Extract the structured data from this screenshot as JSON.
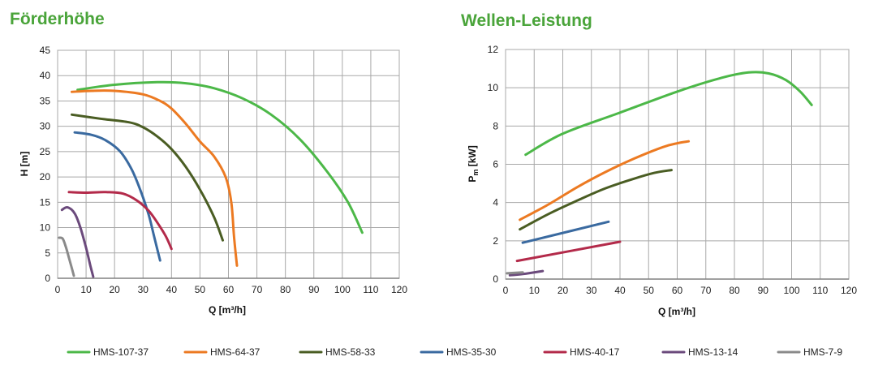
{
  "chart_data": [
    {
      "type": "line",
      "title": "Förderhöhe",
      "title_color": "#4aa43a",
      "xlabel": "Q [m³/h]",
      "ylabel": "H [m]",
      "xlim": [
        0,
        120
      ],
      "ylim": [
        0,
        45
      ],
      "xticks": [
        0,
        10,
        20,
        30,
        40,
        50,
        60,
        70,
        80,
        90,
        100,
        110,
        120
      ],
      "yticks": [
        0,
        5,
        10,
        15,
        20,
        25,
        30,
        35,
        40,
        45
      ],
      "grid": true,
      "series": [
        {
          "name": "HMS-107-37",
          "color": "#4cb848",
          "x": [
            7,
            20,
            35,
            45,
            55,
            65,
            75,
            85,
            95,
            102,
            107
          ],
          "y": [
            37.2,
            38.2,
            38.7,
            38.5,
            37.5,
            35.5,
            32.3,
            27.5,
            20.8,
            15.0,
            9.0
          ]
        },
        {
          "name": "HMS-64-37",
          "color": "#ec7a22",
          "x": [
            5,
            12,
            20,
            30,
            36,
            40,
            45,
            50,
            55,
            59,
            61,
            62,
            63
          ],
          "y": [
            36.8,
            37.0,
            37.0,
            36.3,
            35.0,
            33.5,
            30.5,
            27.0,
            24.0,
            20.0,
            15.0,
            8.0,
            2.5
          ]
        },
        {
          "name": "HMS-58-33",
          "color": "#4a5d23",
          "x": [
            5,
            15,
            25,
            30,
            35,
            40,
            45,
            50,
            55,
            58
          ],
          "y": [
            32.3,
            31.5,
            30.8,
            29.8,
            28.0,
            25.5,
            22.0,
            17.5,
            12.0,
            7.5
          ]
        },
        {
          "name": "HMS-35-30",
          "color": "#3a6aa0",
          "x": [
            6,
            12,
            17,
            22,
            26,
            29,
            32,
            34,
            36
          ],
          "y": [
            28.8,
            28.3,
            27.2,
            25.0,
            21.5,
            17.5,
            12.5,
            8.0,
            3.5
          ]
        },
        {
          "name": "HMS-40-17",
          "color": "#b32a4a",
          "x": [
            4,
            10,
            17,
            23,
            28,
            32,
            35,
            38,
            40
          ],
          "y": [
            17.0,
            16.9,
            17.0,
            16.7,
            15.3,
            13.3,
            11.0,
            8.3,
            5.8
          ]
        },
        {
          "name": "HMS-13-14",
          "color": "#6b4a7c",
          "x": [
            1.5,
            3.5,
            6,
            8,
            10,
            11.5,
            12.5
          ],
          "y": [
            13.5,
            14.0,
            12.8,
            10.0,
            6.0,
            2.5,
            0.3
          ]
        },
        {
          "name": "HMS-7-9",
          "color": "#8a8a8a",
          "x": [
            0.5,
            1.8,
            3,
            4,
            5,
            5.7
          ],
          "y": [
            8.0,
            7.8,
            6.0,
            4.0,
            2.0,
            0.5
          ]
        }
      ]
    },
    {
      "type": "line",
      "title": "Wellen-Leistung",
      "title_color": "#4aa43a",
      "xlabel": "Q [m³/h]",
      "ylabel_main": "P",
      "ylabel_sub": "m",
      "ylabel_unit": " [kW]",
      "xlim": [
        0,
        120
      ],
      "ylim": [
        0,
        12
      ],
      "xticks": [
        0,
        10,
        20,
        30,
        40,
        50,
        60,
        70,
        80,
        90,
        100,
        110,
        120
      ],
      "yticks": [
        0,
        2,
        4,
        6,
        8,
        10,
        12
      ],
      "grid": true,
      "series": [
        {
          "name": "HMS-107-37",
          "color": "#4cb848",
          "x": [
            7,
            20,
            40,
            60,
            75,
            85,
            92,
            98,
            103,
            107
          ],
          "y": [
            6.5,
            7.6,
            8.7,
            9.8,
            10.5,
            10.8,
            10.75,
            10.4,
            9.8,
            9.1
          ]
        },
        {
          "name": "HMS-64-37",
          "color": "#ec7a22",
          "x": [
            5,
            15,
            25,
            35,
            45,
            55,
            60,
            64
          ],
          "y": [
            3.1,
            3.9,
            4.8,
            5.6,
            6.3,
            6.9,
            7.1,
            7.2
          ]
        },
        {
          "name": "HMS-58-33",
          "color": "#4a5d23",
          "x": [
            5,
            15,
            25,
            35,
            45,
            52,
            58
          ],
          "y": [
            2.6,
            3.4,
            4.1,
            4.75,
            5.25,
            5.55,
            5.7
          ]
        },
        {
          "name": "HMS-35-30",
          "color": "#3a6aa0",
          "x": [
            6,
            36
          ],
          "y": [
            1.9,
            3.0
          ]
        },
        {
          "name": "HMS-40-17",
          "color": "#b32a4a",
          "x": [
            4,
            40
          ],
          "y": [
            0.95,
            1.95
          ]
        },
        {
          "name": "HMS-13-14",
          "color": "#6b4a7c",
          "x": [
            1.5,
            7,
            13
          ],
          "y": [
            0.2,
            0.28,
            0.42
          ]
        },
        {
          "name": "HMS-7-9",
          "color": "#8a8a8a",
          "x": [
            0.5,
            3.5,
            6
          ],
          "y": [
            0.3,
            0.33,
            0.35
          ]
        }
      ]
    }
  ],
  "legend": {
    "placement": "bottom",
    "items": [
      {
        "label": "HMS-107-37",
        "color": "#4cb848"
      },
      {
        "label": "HMS-64-37",
        "color": "#ec7a22"
      },
      {
        "label": "HMS-58-33",
        "color": "#4a5d23"
      },
      {
        "label": "HMS-35-30",
        "color": "#3a6aa0"
      },
      {
        "label": "HMS-40-17",
        "color": "#b32a4a"
      },
      {
        "label": "HMS-13-14",
        "color": "#6b4a7c"
      },
      {
        "label": "HMS-7-9",
        "color": "#8a8a8a"
      }
    ]
  }
}
